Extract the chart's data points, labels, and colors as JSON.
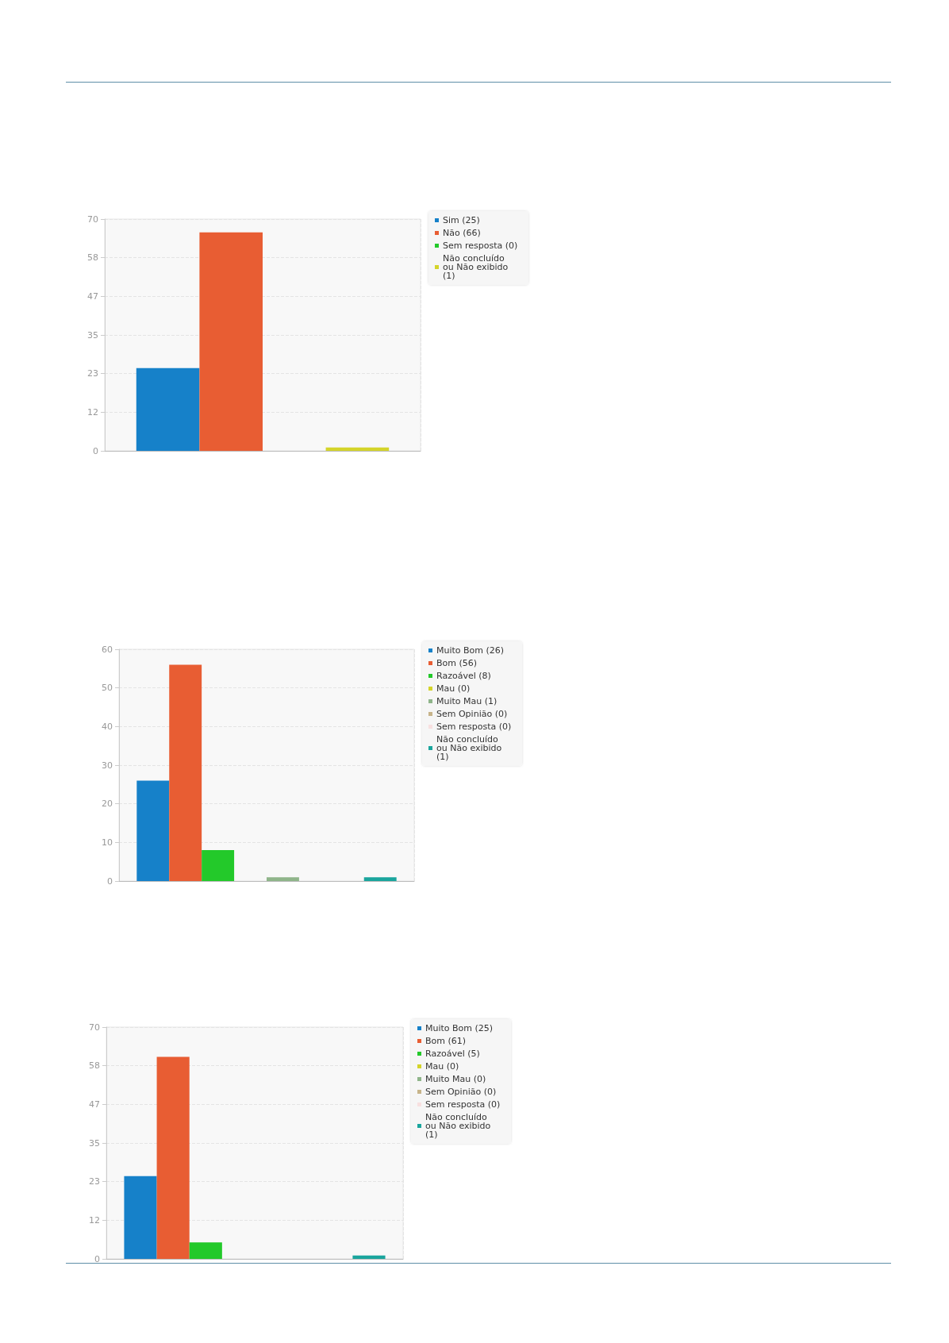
{
  "chart_data": [
    {
      "type": "bar",
      "categories": [
        null
      ],
      "series": [
        {
          "name": "Sim (25)",
          "color": "#1681c9",
          "values": [
            25
          ]
        },
        {
          "name": "Não (66)",
          "color": "#e85d33",
          "values": [
            66
          ]
        },
        {
          "name": "Sem resposta (0)",
          "color": "#23c92a",
          "values": [
            0
          ]
        },
        {
          "name": "Não concluído ou Não exibido (1)",
          "color": "#d4d42a",
          "values": [
            1
          ]
        }
      ],
      "ylim": [
        0,
        70
      ],
      "yticks": [
        0,
        {
          "value": 11.67,
          "label": "12"
        },
        {
          "value": 23.33,
          "label": "23"
        },
        35,
        {
          "value": 46.67,
          "label": "47"
        },
        {
          "value": 58.33,
          "label": "58"
        },
        70
      ],
      "grid": true,
      "legend": "top right",
      "tick_labels": "y"
    },
    {
      "type": "bar",
      "categories": [
        null
      ],
      "series": [
        {
          "name": "Muito Bom (26)",
          "color": "#1681c9",
          "values": [
            26
          ]
        },
        {
          "name": "Bom (56)",
          "color": "#e85d33",
          "values": [
            56
          ]
        },
        {
          "name": "Razoável (8)",
          "color": "#23c92a",
          "values": [
            8
          ]
        },
        {
          "name": "Mau (0)",
          "color": "#d4d42a",
          "values": [
            0
          ]
        },
        {
          "name": "Muito Mau (1)",
          "color": "#8fb58a",
          "values": [
            1
          ]
        },
        {
          "name": "Sem Opinião (0)",
          "color": "#c7b48a",
          "values": [
            0
          ]
        },
        {
          "name": "Sem resposta (0)",
          "color": "#f8e0e0",
          "values": [
            0
          ]
        },
        {
          "name": "Não concluído ou Não exibido (1)",
          "color": "#1aa59d",
          "values": [
            1
          ]
        }
      ],
      "ylim": [
        0,
        60
      ],
      "yticks": [
        0,
        10,
        20,
        30,
        40,
        50,
        60
      ],
      "grid": true,
      "legend": "top right",
      "tick_labels": "y"
    },
    {
      "type": "bar",
      "categories": [
        null
      ],
      "series": [
        {
          "name": "Muito Bom (25)",
          "color": "#1681c9",
          "values": [
            25
          ]
        },
        {
          "name": "Bom (61)",
          "color": "#e85d33",
          "values": [
            61
          ]
        },
        {
          "name": "Razoável (5)",
          "color": "#23c92a",
          "values": [
            5
          ]
        },
        {
          "name": "Mau (0)",
          "color": "#d4d42a",
          "values": [
            0
          ]
        },
        {
          "name": "Muito Mau (0)",
          "color": "#8fb58a",
          "values": [
            0
          ]
        },
        {
          "name": "Sem Opinião (0)",
          "color": "#c7b48a",
          "values": [
            0
          ]
        },
        {
          "name": "Sem resposta (0)",
          "color": "#f8e0e0",
          "values": [
            0
          ]
        },
        {
          "name": "Não concluído ou Não exibido (1)",
          "color": "#1aa59d",
          "values": [
            1
          ]
        }
      ],
      "ylim": [
        0,
        70
      ],
      "yticks": [
        0,
        {
          "value": 11.67,
          "label": "12"
        },
        {
          "value": 23.33,
          "label": "23"
        },
        35,
        {
          "value": 46.67,
          "label": "47"
        },
        {
          "value": 58.33,
          "label": "58"
        },
        70
      ],
      "grid": true,
      "legend": "top right",
      "tick_labels": "y"
    }
  ]
}
